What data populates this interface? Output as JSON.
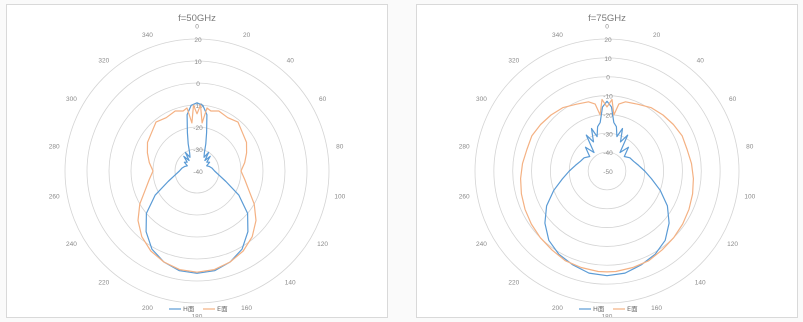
{
  "chart_data": [
    {
      "type": "polar-line",
      "title": "f=50GHz",
      "angle_ticks": [
        "0",
        "20",
        "40",
        "60",
        "80",
        "100",
        "120",
        "140",
        "160",
        "180",
        "200",
        "220",
        "240",
        "260",
        "280",
        "300",
        "320",
        "340"
      ],
      "radial_ticks": [
        "20",
        "10",
        "0",
        "-10",
        "-20",
        "-30",
        "-40"
      ],
      "rlim": [
        -40,
        20
      ],
      "grid": true,
      "legend_position": "bottom",
      "series": [
        {
          "name": "H面",
          "color": "#5b9bd5",
          "points": [
            [
              0,
              -9
            ],
            [
              5,
              -10
            ],
            [
              10,
              -14
            ],
            [
              14,
              -22
            ],
            [
              18,
              -27
            ],
            [
              22,
              -31
            ],
            [
              27,
              -33
            ],
            [
              32,
              -30
            ],
            [
              37,
              -34
            ],
            [
              42,
              -31
            ],
            [
              48,
              -34
            ],
            [
              55,
              -33
            ],
            [
              62,
              -35
            ],
            [
              70,
              -34
            ],
            [
              80,
              -33
            ],
            [
              90,
              -32
            ],
            [
              100,
              -30
            ],
            [
              110,
              -26
            ],
            [
              120,
              -18
            ],
            [
              130,
              -10
            ],
            [
              140,
              -4
            ],
            [
              150,
              1
            ],
            [
              160,
              4
            ],
            [
              170,
              6
            ],
            [
              180,
              6.5
            ],
            [
              190,
              6
            ],
            [
              200,
              4
            ],
            [
              210,
              1
            ],
            [
              220,
              -4
            ],
            [
              230,
              -10
            ],
            [
              240,
              -18
            ],
            [
              250,
              -26
            ],
            [
              260,
              -30
            ],
            [
              270,
              -32
            ],
            [
              280,
              -33
            ],
            [
              290,
              -34
            ],
            [
              298,
              -35
            ],
            [
              305,
              -33
            ],
            [
              312,
              -34
            ],
            [
              318,
              -31
            ],
            [
              323,
              -34
            ],
            [
              328,
              -30
            ],
            [
              333,
              -33
            ],
            [
              338,
              -31
            ],
            [
              342,
              -27
            ],
            [
              346,
              -22
            ],
            [
              350,
              -14
            ],
            [
              355,
              -10
            ],
            [
              360,
              -9
            ]
          ]
        },
        {
          "name": "E面",
          "color": "#f4b183",
          "points": [
            [
              0,
              -14
            ],
            [
              3,
              -10
            ],
            [
              6,
              -18
            ],
            [
              9,
              -11
            ],
            [
              13,
              -12
            ],
            [
              20,
              -11
            ],
            [
              30,
              -12
            ],
            [
              40,
              -11
            ],
            [
              50,
              -13
            ],
            [
              60,
              -14
            ],
            [
              70,
              -16
            ],
            [
              80,
              -18
            ],
            [
              90,
              -20
            ],
            [
              100,
              -18
            ],
            [
              110,
              -15
            ],
            [
              120,
              -10
            ],
            [
              130,
              -5
            ],
            [
              140,
              -1
            ],
            [
              150,
              2
            ],
            [
              160,
              4
            ],
            [
              170,
              5.5
            ],
            [
              180,
              6
            ],
            [
              190,
              5.5
            ],
            [
              200,
              4
            ],
            [
              210,
              2
            ],
            [
              220,
              -1
            ],
            [
              230,
              -5
            ],
            [
              240,
              -10
            ],
            [
              250,
              -15
            ],
            [
              260,
              -18
            ],
            [
              270,
              -20
            ],
            [
              280,
              -18
            ],
            [
              290,
              -16
            ],
            [
              300,
              -14
            ],
            [
              310,
              -13
            ],
            [
              320,
              -11
            ],
            [
              330,
              -12
            ],
            [
              340,
              -11
            ],
            [
              347,
              -12
            ],
            [
              351,
              -11
            ],
            [
              354,
              -18
            ],
            [
              357,
              -10
            ],
            [
              360,
              -14
            ]
          ]
        }
      ]
    },
    {
      "type": "polar-line",
      "title": "f=75GHz",
      "angle_ticks": [
        "0",
        "20",
        "40",
        "60",
        "80",
        "100",
        "120",
        "140",
        "160",
        "180",
        "200",
        "220",
        "240",
        "260",
        "280",
        "300",
        "320",
        "340"
      ],
      "radial_ticks": [
        "20",
        "10",
        "0",
        "-10",
        "-20",
        "-30",
        "-40",
        "-50"
      ],
      "rlim": [
        -50,
        20
      ],
      "grid": true,
      "legend_position": "bottom",
      "series": [
        {
          "name": "H面",
          "color": "#5b9bd5",
          "points": [
            [
              0,
              -13
            ],
            [
              4,
              -16
            ],
            [
              8,
              -24
            ],
            [
              12,
              -26
            ],
            [
              16,
              -31
            ],
            [
              20,
              -26
            ],
            [
              25,
              -33
            ],
            [
              30,
              -28
            ],
            [
              35,
              -38
            ],
            [
              42,
              -33
            ],
            [
              50,
              -38
            ],
            [
              60,
              -36
            ],
            [
              70,
              -35
            ],
            [
              80,
              -33
            ],
            [
              90,
              -30
            ],
            [
              100,
              -26
            ],
            [
              110,
              -20
            ],
            [
              120,
              -13
            ],
            [
              130,
              -7
            ],
            [
              140,
              -2
            ],
            [
              150,
              1
            ],
            [
              160,
              3
            ],
            [
              170,
              5
            ],
            [
              180,
              5.5
            ],
            [
              190,
              5
            ],
            [
              200,
              3
            ],
            [
              210,
              1
            ],
            [
              220,
              -2
            ],
            [
              230,
              -7
            ],
            [
              240,
              -13
            ],
            [
              250,
              -20
            ],
            [
              260,
              -26
            ],
            [
              270,
              -30
            ],
            [
              280,
              -33
            ],
            [
              290,
              -35
            ],
            [
              300,
              -36
            ],
            [
              310,
              -38
            ],
            [
              318,
              -33
            ],
            [
              325,
              -38
            ],
            [
              330,
              -28
            ],
            [
              335,
              -33
            ],
            [
              340,
              -26
            ],
            [
              344,
              -31
            ],
            [
              348,
              -26
            ],
            [
              352,
              -24
            ],
            [
              356,
              -16
            ],
            [
              360,
              -13
            ]
          ]
        },
        {
          "name": "E面",
          "color": "#f4b183",
          "points": [
            [
              0,
              -16
            ],
            [
              4,
              -12
            ],
            [
              7,
              -20
            ],
            [
              10,
              -14
            ],
            [
              15,
              -12
            ],
            [
              25,
              -11
            ],
            [
              35,
              -9
            ],
            [
              45,
              -8
            ],
            [
              55,
              -7
            ],
            [
              65,
              -6
            ],
            [
              75,
              -6
            ],
            [
              85,
              -5
            ],
            [
              95,
              -4
            ],
            [
              105,
              -3
            ],
            [
              115,
              -2
            ],
            [
              125,
              -1
            ],
            [
              135,
              0
            ],
            [
              145,
              1
            ],
            [
              155,
              2.5
            ],
            [
              165,
              3
            ],
            [
              175,
              3.5
            ],
            [
              180,
              3.5
            ],
            [
              185,
              3.5
            ],
            [
              195,
              3
            ],
            [
              205,
              2.5
            ],
            [
              215,
              1
            ],
            [
              225,
              0
            ],
            [
              235,
              -1
            ],
            [
              245,
              -2
            ],
            [
              255,
              -3
            ],
            [
              265,
              -4
            ],
            [
              275,
              -5
            ],
            [
              285,
              -6
            ],
            [
              295,
              -6
            ],
            [
              305,
              -7
            ],
            [
              315,
              -8
            ],
            [
              325,
              -9
            ],
            [
              335,
              -11
            ],
            [
              345,
              -12
            ],
            [
              350,
              -14
            ],
            [
              353,
              -20
            ],
            [
              356,
              -12
            ],
            [
              360,
              -16
            ]
          ]
        }
      ]
    }
  ]
}
